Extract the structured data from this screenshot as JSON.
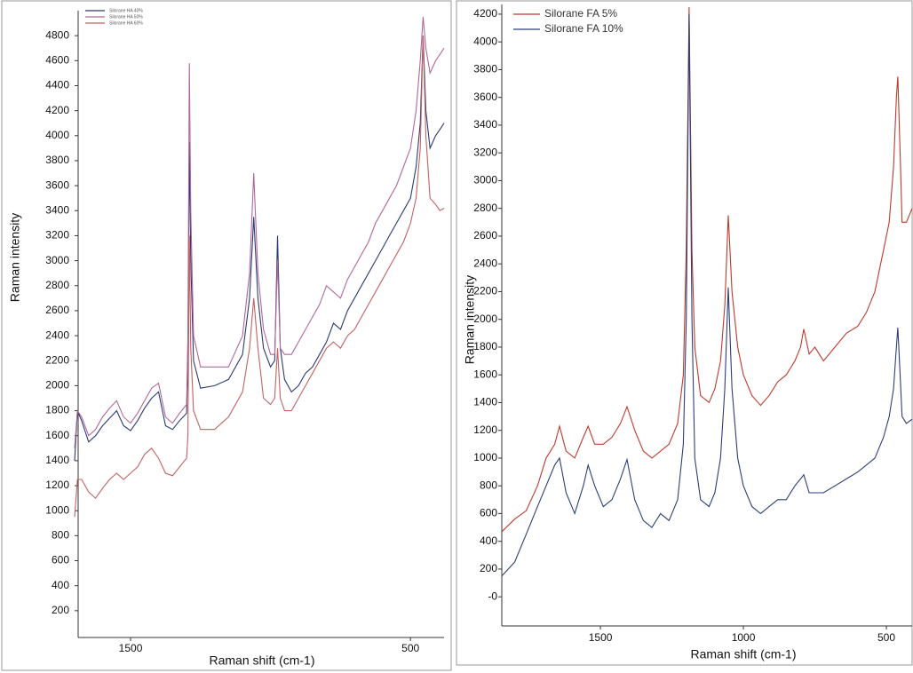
{
  "chart_data": [
    {
      "type": "line",
      "y_label": "Raman intensity",
      "x_label": "Raman shift (cm-1)",
      "xlim": [
        1700,
        380
      ],
      "xticks": [
        1500,
        500
      ],
      "ylim": [
        0,
        5000
      ],
      "yticks": [
        200,
        400,
        600,
        800,
        1000,
        1200,
        1400,
        1600,
        1800,
        2000,
        2200,
        2400,
        2600,
        2800,
        3000,
        3200,
        3400,
        3600,
        3800,
        4000,
        4200,
        4400,
        4600,
        4800
      ],
      "legend": "upper-left",
      "x": [
        1700,
        1690,
        1675,
        1650,
        1625,
        1600,
        1575,
        1550,
        1525,
        1500,
        1475,
        1450,
        1425,
        1400,
        1375,
        1350,
        1325,
        1300,
        1295,
        1290,
        1285,
        1275,
        1250,
        1200,
        1150,
        1100,
        1075,
        1060,
        1045,
        1025,
        1000,
        985,
        975,
        965,
        950,
        925,
        900,
        875,
        850,
        825,
        800,
        775,
        750,
        725,
        700,
        675,
        650,
        625,
        600,
        575,
        550,
        525,
        500,
        480,
        465,
        455,
        445,
        430,
        410,
        395,
        380
      ],
      "series": [
        {
          "name": "Silorane HA 40%",
          "color": "#2b3a78",
          "values": [
            1400,
            1800,
            1720,
            1550,
            1600,
            1680,
            1740,
            1800,
            1680,
            1640,
            1720,
            1820,
            1900,
            1950,
            1680,
            1650,
            1720,
            1780,
            2200,
            3950,
            3000,
            2200,
            1980,
            2000,
            2050,
            2250,
            2700,
            3350,
            2700,
            2300,
            2150,
            2200,
            3200,
            2300,
            2050,
            1950,
            2000,
            2100,
            2150,
            2250,
            2350,
            2500,
            2450,
            2600,
            2700,
            2800,
            2900,
            3000,
            3100,
            3200,
            3300,
            3400,
            3500,
            3750,
            4100,
            4800,
            4200,
            3900,
            4000,
            4050,
            4100
          ]
        },
        {
          "name": "Silorane HA 50%",
          "color": "#b0689a",
          "values": [
            1500,
            1800,
            1750,
            1600,
            1650,
            1750,
            1820,
            1880,
            1750,
            1700,
            1780,
            1880,
            1980,
            2020,
            1750,
            1700,
            1780,
            1850,
            2400,
            4580,
            3400,
            2400,
            2150,
            2150,
            2150,
            2400,
            2900,
            3700,
            2900,
            2450,
            2250,
            2250,
            3000,
            2300,
            2250,
            2250,
            2350,
            2450,
            2550,
            2650,
            2800,
            2750,
            2700,
            2850,
            2950,
            3050,
            3150,
            3300,
            3400,
            3500,
            3600,
            3750,
            3900,
            4200,
            4600,
            4950,
            4700,
            4500,
            4600,
            4650,
            4700
          ]
        },
        {
          "name": "Silorane HA 60%",
          "color": "#c26262",
          "values": [
            950,
            1250,
            1250,
            1150,
            1100,
            1180,
            1250,
            1300,
            1250,
            1300,
            1350,
            1450,
            1500,
            1420,
            1300,
            1280,
            1350,
            1420,
            1600,
            3200,
            2300,
            1800,
            1650,
            1650,
            1750,
            1950,
            2300,
            2700,
            2300,
            1900,
            1850,
            1900,
            2300,
            1900,
            1800,
            1800,
            1900,
            2000,
            2100,
            2200,
            2300,
            2350,
            2300,
            2400,
            2450,
            2550,
            2650,
            2750,
            2850,
            2950,
            3050,
            3150,
            3300,
            3500,
            3900,
            4800,
            4000,
            3500,
            3450,
            3400,
            3420
          ]
        }
      ]
    },
    {
      "type": "line",
      "y_label": "Raman intensity",
      "x_label": "Raman shift (cm-1)",
      "xlim": [
        1845,
        410
      ],
      "xticks": [
        1500,
        1000,
        500
      ],
      "ylim": [
        -210,
        4270
      ],
      "yticks": [
        {
          "value": 0,
          "label": "-0"
        },
        200,
        400,
        600,
        800,
        1000,
        1200,
        1400,
        1600,
        1800,
        2000,
        2200,
        2400,
        2600,
        2800,
        3000,
        3200,
        3400,
        3600,
        3800,
        4000,
        4200
      ],
      "legend": "upper-left",
      "x": [
        1845,
        1800,
        1760,
        1720,
        1690,
        1660,
        1643,
        1620,
        1590,
        1560,
        1543,
        1520,
        1490,
        1460,
        1430,
        1407,
        1380,
        1350,
        1320,
        1290,
        1260,
        1230,
        1210,
        1200,
        1190,
        1180,
        1170,
        1150,
        1120,
        1100,
        1080,
        1065,
        1053,
        1040,
        1020,
        1000,
        970,
        940,
        910,
        880,
        850,
        820,
        800,
        789,
        770,
        750,
        720,
        680,
        640,
        600,
        570,
        540,
        510,
        490,
        475,
        465,
        460,
        452,
        445,
        430,
        410
      ],
      "series": [
        {
          "name": "Silorane FA 5%",
          "color": "#c0392b",
          "values": [
            470,
            560,
            620,
            800,
            1000,
            1100,
            1230,
            1050,
            1000,
            1150,
            1230,
            1100,
            1100,
            1150,
            1250,
            1370,
            1200,
            1050,
            1000,
            1050,
            1100,
            1250,
            1600,
            2500,
            4250,
            2500,
            1800,
            1450,
            1400,
            1500,
            1700,
            2100,
            2750,
            2200,
            1800,
            1600,
            1450,
            1380,
            1450,
            1550,
            1600,
            1700,
            1800,
            1930,
            1750,
            1800,
            1700,
            1800,
            1900,
            1950,
            2050,
            2200,
            2500,
            2700,
            3100,
            3600,
            3750,
            3200,
            2700,
            2700,
            2800
          ]
        },
        {
          "name": "Silorane FA 10%",
          "color": "#2c3e7a",
          "values": [
            150,
            250,
            450,
            650,
            800,
            950,
            1000,
            750,
            600,
            800,
            950,
            800,
            650,
            700,
            850,
            990,
            700,
            550,
            500,
            600,
            550,
            700,
            1100,
            2000,
            4200,
            2000,
            1000,
            700,
            650,
            750,
            1000,
            1500,
            2230,
            1500,
            1000,
            800,
            650,
            600,
            650,
            700,
            700,
            800,
            850,
            880,
            750,
            750,
            750,
            800,
            850,
            900,
            950,
            1000,
            1150,
            1300,
            1500,
            1800,
            1940,
            1600,
            1300,
            1250,
            1280
          ]
        }
      ]
    }
  ]
}
